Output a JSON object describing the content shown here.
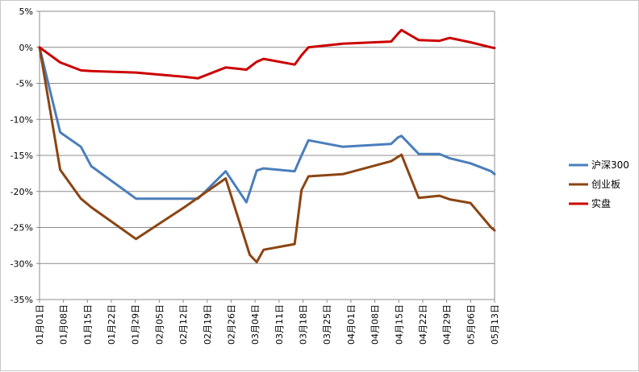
{
  "chart_data": {
    "type": "line",
    "title": "",
    "xlabel": "",
    "ylabel": "",
    "ylim": [
      -35,
      5
    ],
    "yticks": [
      "5%",
      "0%",
      "-5%",
      "-10%",
      "-15%",
      "-20%",
      "-25%",
      "-30%",
      "-35%"
    ],
    "ytick_values": [
      5,
      0,
      -5,
      -10,
      -15,
      -20,
      -25,
      -30,
      -35
    ],
    "x_start": "2015-01-01",
    "xticks": [
      "01月01日",
      "01月08日",
      "01月15日",
      "01月22日",
      "01月29日",
      "02月05日",
      "02月12日",
      "02月19日",
      "02月26日",
      "03月04日",
      "03月11日",
      "03月18日",
      "03月25日",
      "04月01日",
      "04月08日",
      "04月15日",
      "04月22日",
      "04月29日",
      "05月06日",
      "05月13日"
    ],
    "grid": "horizontal",
    "legend_position": "right",
    "series": [
      {
        "name": "沪深300",
        "color": "#4a7ebb",
        "points": [
          [
            "01-01",
            0
          ],
          [
            "01-07",
            -11.8
          ],
          [
            "01-13",
            -13.8
          ],
          [
            "01-16",
            -16.5
          ],
          [
            "01-29",
            -21.0
          ],
          [
            "02-16",
            -21.0
          ],
          [
            "02-24",
            -17.2
          ],
          [
            "03-02",
            -21.5
          ],
          [
            "03-05",
            -17.1
          ],
          [
            "03-07",
            -16.8
          ],
          [
            "03-16",
            -17.2
          ],
          [
            "03-18",
            -15.0
          ],
          [
            "03-20",
            -12.9
          ],
          [
            "03-30",
            -13.8
          ],
          [
            "04-13",
            -13.4
          ],
          [
            "04-15",
            -12.5
          ],
          [
            "04-16",
            -12.3
          ],
          [
            "04-21",
            -14.8
          ],
          [
            "04-27",
            -14.8
          ],
          [
            "04-30",
            -15.4
          ],
          [
            "05-06",
            -16.1
          ],
          [
            "05-12",
            -17.2
          ],
          [
            "05-13",
            -17.6
          ]
        ]
      },
      {
        "name": "创业板",
        "color": "#8b4513",
        "points": [
          [
            "01-01",
            0
          ],
          [
            "01-07",
            -17.0
          ],
          [
            "01-13",
            -21.0
          ],
          [
            "01-16",
            -22.2
          ],
          [
            "01-29",
            -26.6
          ],
          [
            "02-12",
            -22.2
          ],
          [
            "02-24",
            -18.2
          ],
          [
            "03-03",
            -28.8
          ],
          [
            "03-05",
            -29.8
          ],
          [
            "03-07",
            -28.1
          ],
          [
            "03-16",
            -27.3
          ],
          [
            "03-18",
            -19.8
          ],
          [
            "03-20",
            -17.9
          ],
          [
            "03-30",
            -17.6
          ],
          [
            "04-13",
            -15.8
          ],
          [
            "04-16",
            -14.9
          ],
          [
            "04-21",
            -20.9
          ],
          [
            "04-27",
            -20.6
          ],
          [
            "04-30",
            -21.1
          ],
          [
            "05-06",
            -21.6
          ],
          [
            "05-12",
            -25.0
          ],
          [
            "05-13",
            -25.4
          ]
        ]
      },
      {
        "name": "实盘",
        "color": "#cc0000",
        "points": [
          [
            "01-01",
            0
          ],
          [
            "01-07",
            -2.1
          ],
          [
            "01-13",
            -3.2
          ],
          [
            "01-16",
            -3.3
          ],
          [
            "01-29",
            -3.5
          ],
          [
            "02-12",
            -4.1
          ],
          [
            "02-16",
            -4.3
          ],
          [
            "02-24",
            -2.8
          ],
          [
            "03-02",
            -3.1
          ],
          [
            "03-05",
            -2.0
          ],
          [
            "03-07",
            -1.6
          ],
          [
            "03-16",
            -2.4
          ],
          [
            "03-18",
            -1.1
          ],
          [
            "03-20",
            0.0
          ],
          [
            "03-30",
            0.5
          ],
          [
            "04-13",
            0.8
          ],
          [
            "04-15",
            1.9
          ],
          [
            "04-16",
            2.4
          ],
          [
            "04-21",
            1.0
          ],
          [
            "04-27",
            0.9
          ],
          [
            "04-30",
            1.3
          ],
          [
            "05-06",
            0.7
          ],
          [
            "05-12",
            0.0
          ],
          [
            "05-13",
            -0.1
          ]
        ]
      }
    ]
  }
}
